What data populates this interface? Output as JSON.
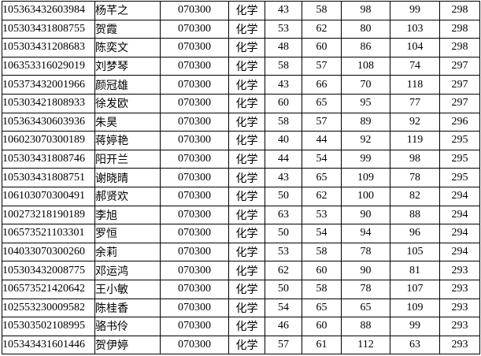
{
  "colors": {
    "background": "#ffffff",
    "grid_border": "#000000",
    "text": "#000000"
  },
  "table": {
    "description": "score-list-table",
    "rows": [
      [
        "105363432603984",
        "杨芊之",
        "070300",
        "化学",
        "43",
        "58",
        "98",
        "99",
        "298"
      ],
      [
        "105303431808755",
        "贺霞",
        "070300",
        "化学",
        "53",
        "62",
        "80",
        "103",
        "298"
      ],
      [
        "105303431208683",
        "陈奕文",
        "070300",
        "化学",
        "48",
        "60",
        "86",
        "104",
        "298"
      ],
      [
        "106353316029019",
        "刘梦琴",
        "070300",
        "化学",
        "58",
        "57",
        "108",
        "74",
        "297"
      ],
      [
        "105373432001966",
        "颜冠雄",
        "070300",
        "化学",
        "43",
        "66",
        "70",
        "118",
        "297"
      ],
      [
        "105303421808933",
        "徐发欧",
        "070300",
        "化学",
        "60",
        "65",
        "95",
        "77",
        "297"
      ],
      [
        "105363430603936",
        "朱昊",
        "070300",
        "化学",
        "58",
        "57",
        "89",
        "92",
        "296"
      ],
      [
        "106023070300189",
        "蒋婷艳",
        "070300",
        "化学",
        "40",
        "44",
        "92",
        "119",
        "295"
      ],
      [
        "105303431808746",
        "阳开兰",
        "070300",
        "化学",
        "44",
        "54",
        "99",
        "98",
        "295"
      ],
      [
        "105303431808751",
        "谢晓晴",
        "070300",
        "化学",
        "43",
        "65",
        "109",
        "78",
        "295"
      ],
      [
        "106103070300491",
        "郝贤欢",
        "070300",
        "化学",
        "50",
        "62",
        "100",
        "82",
        "294"
      ],
      [
        "100273218190189",
        "李旭",
        "070300",
        "化学",
        "63",
        "53",
        "90",
        "88",
        "294"
      ],
      [
        "106573521103301",
        "罗恒",
        "070300",
        "化学",
        "50",
        "54",
        "94",
        "96",
        "294"
      ],
      [
        "104033070300260",
        "余莉",
        "070300",
        "化学",
        "53",
        "58",
        "78",
        "105",
        "294"
      ],
      [
        "105303432008775",
        "邓运鸿",
        "070300",
        "化学",
        "62",
        "60",
        "90",
        "81",
        "293"
      ],
      [
        "106573521420642",
        "王小敏",
        "070300",
        "化学",
        "50",
        "58",
        "78",
        "107",
        "293"
      ],
      [
        "102553230009582",
        "陈桂香",
        "070300",
        "化学",
        "54",
        "65",
        "65",
        "109",
        "293"
      ],
      [
        "105303502108995",
        "骆书伶",
        "070300",
        "化学",
        "46",
        "60",
        "88",
        "99",
        "293"
      ],
      [
        "105343431601446",
        "贺伊婷",
        "070300",
        "化学",
        "57",
        "61",
        "112",
        "63",
        "293"
      ]
    ]
  }
}
